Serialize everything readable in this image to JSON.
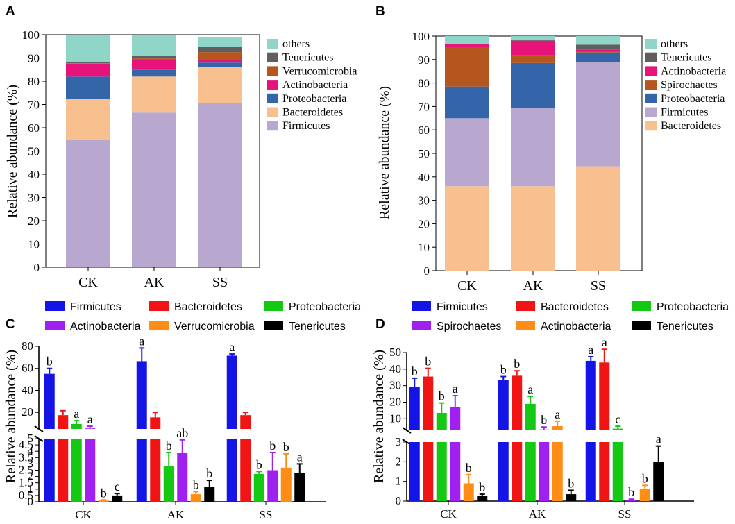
{
  "panels": [
    {
      "letter": "A",
      "ylabel": "Relative abundance (%)"
    },
    {
      "letter": "B",
      "ylabel": "Relative abundance (%)"
    },
    {
      "letter": "C",
      "ylabel": "Relative abundance (%)"
    },
    {
      "letter": "D",
      "ylabel": "Relative abundance (%)"
    }
  ],
  "colors": {
    "others": "#8fd6c8",
    "Tenericutes": "#5f5f5f",
    "Verrucomicrobia": "#b5561e",
    "Actinobacteria": "#e8137a",
    "Proteobacteria": "#3465a8",
    "Bacteroidetes": "#f8c08e",
    "Firmicutes": "#b8a8d0",
    "Spirochaetes": "#b5561e",
    "bar_Firmicutes": "#1414e6",
    "bar_Bacteroidetes": "#f01414",
    "bar_Proteobacteria": "#14c814",
    "bar_Actinobacteria": "#a020f0",
    "bar_Spirochaetes": "#a020f0",
    "bar_Verrucomicrobia": "#ff8c14",
    "bar_ActinobacteriaD": "#ff8c14",
    "bar_Tenericutes": "#000000"
  },
  "chart_data": [
    {
      "type": "bar",
      "stacked": true,
      "panel": "A",
      "categories": [
        "CK",
        "AK",
        "SS"
      ],
      "ylabel": "Relative abundance (%)",
      "ylim": [
        0,
        100
      ],
      "yticks": [
        "0",
        "10",
        "20",
        "30",
        "40",
        "50",
        "60",
        "70",
        "80",
        "90",
        "100"
      ],
      "legend": [
        "others",
        "Tenericutes",
        "Verrucomicrobia",
        "Actinobacteria",
        "Proteobacteria",
        "Bacteroidetes",
        "Firmicutes"
      ],
      "series": [
        {
          "name": "Firmicutes",
          "values": [
            55,
            66.5,
            70.5
          ]
        },
        {
          "name": "Bacteroidetes",
          "values": [
            17.5,
            15.5,
            15.5
          ]
        },
        {
          "name": "Proteobacteria",
          "values": [
            9.5,
            3,
            2
          ]
        },
        {
          "name": "Actinobacteria",
          "values": [
            5.5,
            4,
            1
          ]
        },
        {
          "name": "Verrucomicrobia",
          "values": [
            0.2,
            0.8,
            3.5
          ]
        },
        {
          "name": "Tenericutes",
          "values": [
            0.5,
            1.2,
            2.2
          ]
        },
        {
          "name": "others",
          "values": [
            11.8,
            9,
            4.3
          ]
        }
      ]
    },
    {
      "type": "bar",
      "stacked": true,
      "panel": "B",
      "categories": [
        "CK",
        "AK",
        "SS"
      ],
      "ylabel": "Relative abundance (%)",
      "ylim": [
        0,
        100
      ],
      "yticks": [
        "0",
        "10",
        "20",
        "30",
        "40",
        "50",
        "60",
        "70",
        "80",
        "90",
        "100"
      ],
      "legend": [
        "others",
        "Tenericutes",
        "Actinobacteria",
        "Spirochaetes",
        "Proteobacteria",
        "Firmicutes",
        "Bacteroidetes"
      ],
      "series": [
        {
          "name": "Bacteroidetes",
          "values": [
            36,
            36,
            44.5
          ]
        },
        {
          "name": "Firmicutes",
          "values": [
            29,
            33.5,
            44.5
          ]
        },
        {
          "name": "Proteobacteria",
          "values": [
            13.5,
            19,
            4
          ]
        },
        {
          "name": "Spirochaetes",
          "values": [
            17,
            3.5,
            0.5
          ]
        },
        {
          "name": "Actinobacteria",
          "values": [
            1,
            6,
            0.8
          ]
        },
        {
          "name": "Tenericutes",
          "values": [
            0.3,
            0.4,
            2
          ]
        },
        {
          "name": "others",
          "values": [
            3.2,
            1.6,
            3.7
          ]
        }
      ]
    },
    {
      "type": "bar",
      "panel": "C",
      "categories": [
        "CK",
        "AK",
        "SS"
      ],
      "ylabel": "Relative abundance (%)",
      "broken_axis": {
        "lower": [
          0,
          5
        ],
        "upper": [
          5,
          80
        ]
      },
      "yticks_lower": [
        "0",
        "0.5",
        "1",
        "1.5",
        "2",
        "2.5",
        "3",
        "3.5",
        "4",
        "4.5",
        "5"
      ],
      "yticks_upper": [
        "20",
        "40",
        "60",
        "80"
      ],
      "series": [
        {
          "name": "Firmicutes",
          "values": [
            55,
            66.5,
            71.5
          ],
          "errors": [
            5,
            12,
            1.5
          ],
          "letters": [
            "b",
            "a",
            "a"
          ]
        },
        {
          "name": "Bacteroidetes",
          "values": [
            17.5,
            15.5,
            17.5
          ],
          "errors": [
            4,
            4.5,
            2.5
          ],
          "letters": [
            "",
            "",
            ""
          ]
        },
        {
          "name": "Proteobacteria",
          "values": [
            9.5,
            2.8,
            2.2
          ],
          "errors": [
            3,
            1.1,
            0.2
          ],
          "letters": [
            "a",
            "b",
            "b"
          ]
        },
        {
          "name": "Actinobacteria",
          "values": [
            5.5,
            3.9,
            2.5
          ],
          "errors": [
            2,
            1,
            1.4
          ],
          "letters": [
            "a",
            "ab",
            "b"
          ]
        },
        {
          "name": "Verrucomicrobia",
          "values": [
            0.1,
            0.6,
            2.7
          ],
          "errors": [
            0.05,
            0.2,
            1.1
          ],
          "letters": [
            "b",
            "b",
            "b"
          ]
        },
        {
          "name": "Tenericutes",
          "values": [
            0.5,
            1.2,
            2.3
          ],
          "errors": [
            0.15,
            0.5,
            0.7
          ],
          "letters": [
            "c",
            "b",
            "a"
          ]
        }
      ]
    },
    {
      "type": "bar",
      "panel": "D",
      "categories": [
        "CK",
        "AK",
        "SS"
      ],
      "ylabel": "Relative abundance (%)",
      "broken_axis": {
        "lower": [
          0,
          3
        ],
        "upper": [
          3,
          50
        ]
      },
      "yticks_lower": [
        "0",
        "1",
        "2",
        "3"
      ],
      "yticks_upper": [
        "10",
        "20",
        "30",
        "40",
        "50"
      ],
      "series": [
        {
          "name": "Firmicutes",
          "values": [
            29,
            33.5,
            45
          ],
          "errors": [
            5.5,
            2,
            2.5
          ],
          "letters": [
            "b",
            "b",
            "a"
          ]
        },
        {
          "name": "Bacteroidetes",
          "values": [
            35.5,
            36,
            44
          ],
          "errors": [
            5,
            3,
            8
          ],
          "letters": [
            "b",
            "b",
            "a"
          ]
        },
        {
          "name": "Proteobacteria",
          "values": [
            13.5,
            19,
            4
          ],
          "errors": [
            6,
            4.5,
            1.5
          ],
          "letters": [
            "b",
            "a",
            "c"
          ]
        },
        {
          "name": "Spirochaetes",
          "values": [
            17,
            3.5,
            0.05
          ],
          "errors": [
            7,
            1.5,
            0.05
          ],
          "letters": [
            "a",
            "b",
            "b"
          ]
        },
        {
          "name": "Actinobacteria",
          "values": [
            0.9,
            5.5,
            0.6
          ],
          "errors": [
            0.45,
            3,
            0.2
          ],
          "letters": [
            "b",
            "a",
            "b"
          ]
        },
        {
          "name": "Tenericutes",
          "values": [
            0.25,
            0.35,
            2
          ],
          "errors": [
            0.1,
            0.2,
            0.8
          ],
          "letters": [
            "b",
            "b",
            "a"
          ]
        }
      ]
    }
  ]
}
